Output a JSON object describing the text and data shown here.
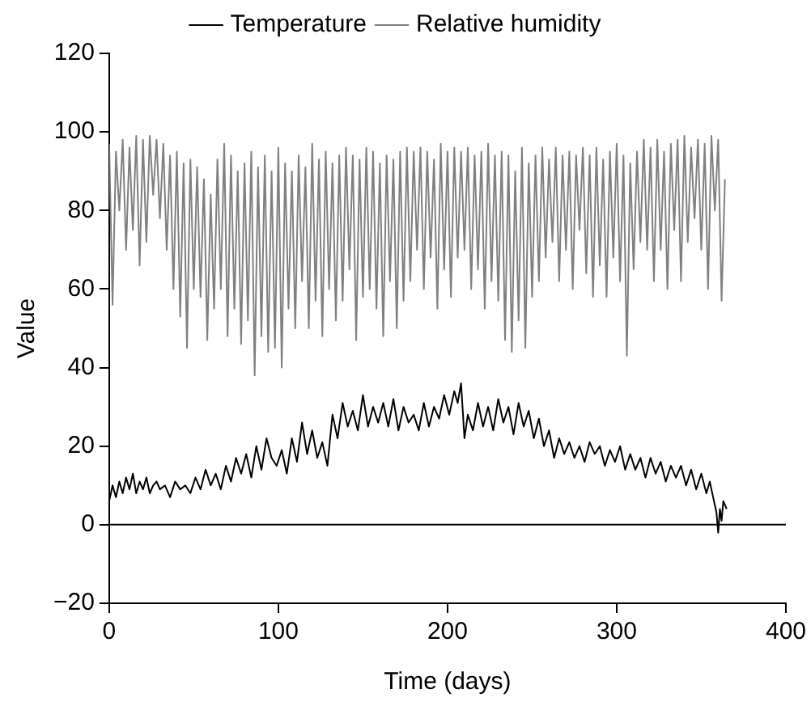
{
  "chart_data": {
    "type": "line",
    "xlabel": "Time (days)",
    "ylabel": "Value",
    "xlim": [
      0,
      400
    ],
    "xticks": [
      0,
      100,
      200,
      300,
      400
    ],
    "ylim": [
      -20,
      120
    ],
    "yticks": [
      -20,
      0,
      20,
      40,
      60,
      80,
      100,
      120
    ],
    "grid": false,
    "legend": "top",
    "marker": "none",
    "line_style": "solid",
    "ref_lines": [
      {
        "axis": "y",
        "value": 0,
        "color": "#000000"
      }
    ],
    "series": [
      {
        "name": "Temperature",
        "color": "#000000",
        "x": [
          0,
          2,
          4,
          6,
          8,
          10,
          12,
          14,
          16,
          18,
          20,
          22,
          24,
          26,
          28,
          30,
          33,
          36,
          39,
          42,
          45,
          48,
          51,
          54,
          57,
          60,
          63,
          66,
          69,
          72,
          75,
          78,
          81,
          84,
          87,
          90,
          93,
          96,
          99,
          102,
          105,
          108,
          111,
          114,
          117,
          120,
          123,
          126,
          129,
          132,
          135,
          138,
          141,
          144,
          147,
          150,
          153,
          156,
          159,
          162,
          165,
          168,
          171,
          174,
          177,
          180,
          183,
          186,
          189,
          192,
          195,
          198,
          201,
          204,
          206,
          208,
          210,
          212,
          215,
          218,
          221,
          224,
          227,
          230,
          233,
          236,
          239,
          242,
          245,
          248,
          251,
          254,
          257,
          260,
          263,
          266,
          269,
          272,
          275,
          278,
          281,
          284,
          287,
          290,
          293,
          296,
          299,
          302,
          305,
          308,
          311,
          314,
          317,
          320,
          323,
          326,
          329,
          332,
          335,
          338,
          341,
          344,
          347,
          350,
          353,
          355,
          357,
          359,
          360,
          361,
          362,
          363,
          365
        ],
        "values": [
          6,
          10,
          7,
          11,
          8,
          12,
          9,
          13,
          8,
          11,
          9,
          12,
          8,
          10,
          11,
          9,
          10,
          7,
          11,
          9,
          10,
          8,
          12,
          9,
          14,
          10,
          13,
          9,
          15,
          11,
          17,
          13,
          18,
          12,
          20,
          14,
          22,
          17,
          15,
          19,
          13,
          22,
          16,
          26,
          18,
          24,
          17,
          21,
          15,
          28,
          22,
          31,
          25,
          29,
          24,
          33,
          25,
          30,
          26,
          31,
          25,
          32,
          24,
          30,
          26,
          28,
          24,
          31,
          25,
          30,
          27,
          33,
          28,
          34,
          31,
          36,
          22,
          28,
          24,
          31,
          25,
          30,
          24,
          32,
          26,
          30,
          23,
          31,
          25,
          29,
          22,
          27,
          20,
          24,
          17,
          22,
          18,
          21,
          17,
          20,
          16,
          21,
          18,
          20,
          15,
          19,
          16,
          20,
          14,
          18,
          14,
          17,
          12,
          17,
          13,
          16,
          11,
          15,
          12,
          15,
          10,
          14,
          9,
          13,
          8,
          11,
          7,
          3,
          -2,
          4,
          1,
          6,
          4
        ]
      },
      {
        "name": "Relative humidity",
        "color": "#808080",
        "x": [
          0,
          2,
          4,
          6,
          8,
          10,
          12,
          14,
          16,
          18,
          20,
          22,
          24,
          26,
          28,
          30,
          32,
          34,
          36,
          38,
          40,
          42,
          44,
          46,
          48,
          50,
          52,
          54,
          56,
          58,
          60,
          62,
          64,
          66,
          68,
          70,
          72,
          74,
          76,
          78,
          80,
          82,
          84,
          86,
          88,
          90,
          92,
          94,
          96,
          98,
          100,
          102,
          104,
          106,
          108,
          110,
          112,
          114,
          116,
          118,
          120,
          122,
          124,
          126,
          128,
          130,
          132,
          134,
          136,
          138,
          140,
          142,
          144,
          146,
          148,
          150,
          152,
          154,
          156,
          158,
          160,
          162,
          164,
          166,
          168,
          170,
          172,
          174,
          176,
          178,
          180,
          182,
          184,
          186,
          188,
          190,
          192,
          194,
          196,
          198,
          200,
          202,
          204,
          206,
          208,
          210,
          212,
          214,
          216,
          218,
          220,
          222,
          224,
          226,
          228,
          230,
          232,
          234,
          236,
          238,
          240,
          242,
          244,
          246,
          248,
          250,
          252,
          254,
          256,
          258,
          260,
          262,
          264,
          266,
          268,
          270,
          272,
          274,
          276,
          278,
          280,
          282,
          284,
          286,
          288,
          290,
          292,
          294,
          296,
          298,
          300,
          302,
          304,
          306,
          308,
          310,
          312,
          314,
          316,
          318,
          320,
          322,
          324,
          326,
          328,
          330,
          332,
          334,
          336,
          338,
          340,
          342,
          344,
          346,
          348,
          350,
          352,
          354,
          356,
          358,
          360,
          362,
          364
        ],
        "values": [
          97,
          56,
          95,
          80,
          98,
          70,
          96,
          75,
          99,
          66,
          98,
          72,
          99,
          84,
          98,
          78,
          97,
          70,
          94,
          60,
          95,
          53,
          92,
          45,
          93,
          60,
          91,
          58,
          88,
          47,
          84,
          55,
          93,
          60,
          97,
          48,
          94,
          55,
          90,
          46,
          92,
          52,
          95,
          38,
          91,
          48,
          94,
          44,
          90,
          45,
          96,
          40,
          92,
          55,
          90,
          50,
          94,
          62,
          91,
          50,
          97,
          57,
          93,
          48,
          95,
          60,
          92,
          52,
          94,
          57,
          96,
          65,
          94,
          47,
          93,
          58,
          96,
          60,
          95,
          55,
          92,
          48,
          94,
          62,
          93,
          50,
          95,
          57,
          96,
          62,
          95,
          70,
          96,
          60,
          95,
          68,
          93,
          55,
          97,
          65,
          95,
          58,
          96,
          68,
          95,
          70,
          96,
          60,
          94,
          65,
          95,
          55,
          97,
          62,
          94,
          57,
          95,
          47,
          94,
          44,
          90,
          52,
          96,
          45,
          92,
          58,
          94,
          62,
          96,
          68,
          93,
          72,
          96,
          62,
          94,
          70,
          95,
          60,
          94,
          75,
          96,
          64,
          94,
          58,
          96,
          66,
          93,
          58,
          95,
          68,
          97,
          62,
          94,
          43,
          92,
          65,
          95,
          72,
          98,
          70,
          96,
          62,
          98,
          70,
          95,
          60,
          97,
          75,
          98,
          62,
          99,
          72,
          96,
          78,
          98,
          70,
          97,
          60,
          99,
          80,
          98,
          57,
          88
        ]
      }
    ]
  }
}
